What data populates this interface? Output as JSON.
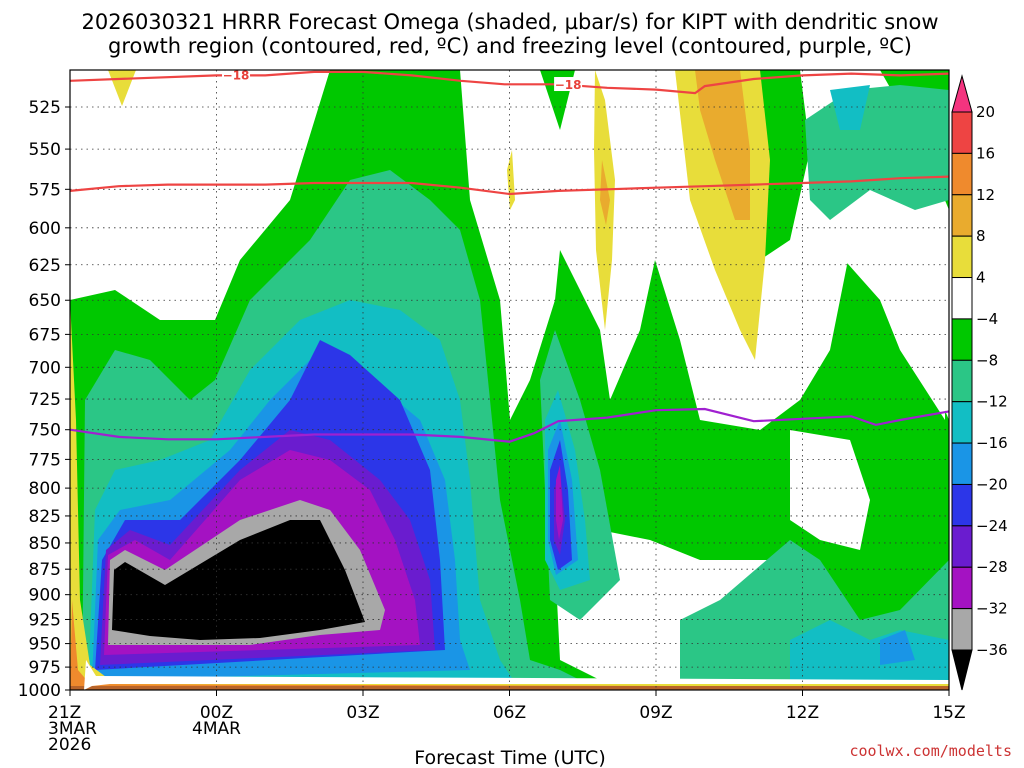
{
  "chart_data": {
    "type": "time-height contour",
    "title_line1": "2026030321 HRRR Forecast Omega (shaded, µbar/s) for KIPT with dendritic snow",
    "title_line2": "growth region (contoured, red, ºC) and freezing level (contoured, purple, ºC)",
    "xlabel": "Forecast Time (UTC)",
    "credit": "coolwx.com/modelts",
    "x_ticks": [
      {
        "hour": 0,
        "l1": "21Z",
        "l2": "3MAR",
        "l3": "2026"
      },
      {
        "hour": 3,
        "l1": "00Z",
        "l2": "4MAR",
        "l3": ""
      },
      {
        "hour": 6,
        "l1": "03Z",
        "l2": "",
        "l3": ""
      },
      {
        "hour": 9,
        "l1": "06Z",
        "l2": "",
        "l3": ""
      },
      {
        "hour": 12,
        "l1": "09Z",
        "l2": "",
        "l3": ""
      },
      {
        "hour": 15,
        "l1": "12Z",
        "l2": "",
        "l3": ""
      },
      {
        "hour": 18,
        "l1": "15Z",
        "l2": "",
        "l3": ""
      }
    ],
    "x_range_hours": [
      0,
      18
    ],
    "y_levels": [
      "525",
      "550",
      "575",
      "600",
      "625",
      "650",
      "675",
      "700",
      "725",
      "750",
      "775",
      "800",
      "825",
      "850",
      "875",
      "900",
      "925",
      "950",
      "975",
      "1000"
    ],
    "colorbar_labels": [
      "20",
      "16",
      "12",
      "8",
      "4",
      "−4",
      "−8",
      "−12",
      "−16",
      "−20",
      "−24",
      "−28",
      "−32",
      "−36"
    ],
    "colorbar_colors": [
      "#f4347f",
      "#ee4443",
      "#ef8a2d",
      "#e9ab2e",
      "#e8dd3a",
      "#ffffff",
      "#00c800",
      "#2bc686",
      "#12bec4",
      "#1a95e6",
      "#2c36e8",
      "#6a1ccf",
      "#a412c2",
      "#a8a8a8",
      "#000000"
    ],
    "series": [
      {
        "name": "Dendritic growth -18 °C (upper)",
        "color": "#ee4443",
        "label": "-18",
        "hour": [
          0,
          3,
          4,
          5,
          6,
          7,
          8,
          8.9,
          10,
          11,
          12,
          12.8,
          13,
          14,
          15,
          16,
          17,
          18
        ],
        "pressure": [
          510,
          507,
          507,
          505,
          505,
          507,
          510,
          512,
          512,
          514,
          515,
          517,
          513,
          509,
          507,
          506,
          507,
          506
        ]
      },
      {
        "name": "Dendritic growth -12 °C (lower)",
        "color": "#ee4443",
        "hour": [
          0,
          1,
          2,
          3,
          4,
          5,
          6,
          7,
          8,
          9,
          10,
          11,
          12,
          13,
          14,
          15,
          16,
          17,
          18
        ],
        "pressure": [
          576,
          573,
          572,
          572,
          572,
          571,
          571,
          571,
          574,
          578,
          576,
          575,
          574,
          573,
          572,
          571,
          570,
          568,
          567
        ]
      },
      {
        "name": "Freezing level 0 °C",
        "color": "#a020d0",
        "hour": [
          0,
          1,
          2,
          3,
          4,
          5,
          6,
          7,
          8,
          9,
          9.5,
          10,
          11,
          12,
          13,
          14,
          15,
          16,
          16.5,
          17,
          18
        ],
        "pressure": [
          750,
          756,
          758,
          758,
          756,
          754,
          754,
          754,
          756,
          760,
          753,
          743,
          740,
          734,
          733,
          743,
          741,
          739,
          746,
          742,
          735
        ]
      }
    ],
    "omega_shading_note": "Strongest upward motion (below -36) centered 21Z-03Z between 850 and 950 mb"
  }
}
